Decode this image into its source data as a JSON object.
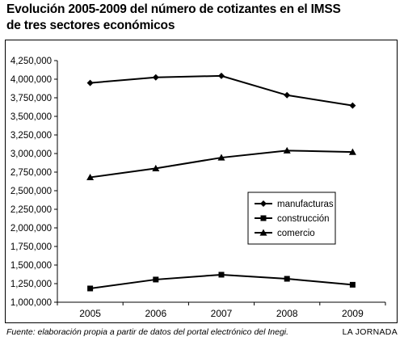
{
  "header": {
    "title_line1": "Evolución 2005-2009 del número de cotizantes en el IMSS",
    "title_line2": "de tres sectores económicos"
  },
  "footer": {
    "source": "Fuente: elaboración propia a partir de datos del portal electrónico del Inegi.",
    "brand": "LA JORNADA"
  },
  "chart_data": {
    "type": "line",
    "title": "Evolución 2005-2009 del número de cotizantes en el IMSS de tres sectores económicos",
    "xlabel": "",
    "ylabel": "",
    "categories": [
      "2005",
      "2006",
      "2007",
      "2008",
      "2009"
    ],
    "ylim": [
      1000000,
      4250000
    ],
    "yticks": [
      1000000,
      1250000,
      1500000,
      1750000,
      2000000,
      2250000,
      2500000,
      2750000,
      3000000,
      3250000,
      3500000,
      3750000,
      4000000,
      4250000
    ],
    "ytick_labels": [
      "1,000,000",
      "1,250,000",
      "1,500,000",
      "1,750,000",
      "2,000,000",
      "2,250,000",
      "2,500,000",
      "2,750,000",
      "3,000,000",
      "3,250,000",
      "3,500,000",
      "3,750,000",
      "4,000,000",
      "4,250,000"
    ],
    "grid": false,
    "legend_position": "right-center",
    "series": [
      {
        "name": "manufacturas",
        "marker": "diamond",
        "values": [
          3950000,
          4025000,
          4045000,
          3785000,
          3645000
        ]
      },
      {
        "name": "construcción",
        "marker": "square",
        "values": [
          1185000,
          1305000,
          1370000,
          1315000,
          1235000
        ]
      },
      {
        "name": "comercio",
        "marker": "triangle",
        "values": [
          2680000,
          2800000,
          2945000,
          3040000,
          3020000
        ]
      }
    ],
    "line_color": "#000000"
  }
}
